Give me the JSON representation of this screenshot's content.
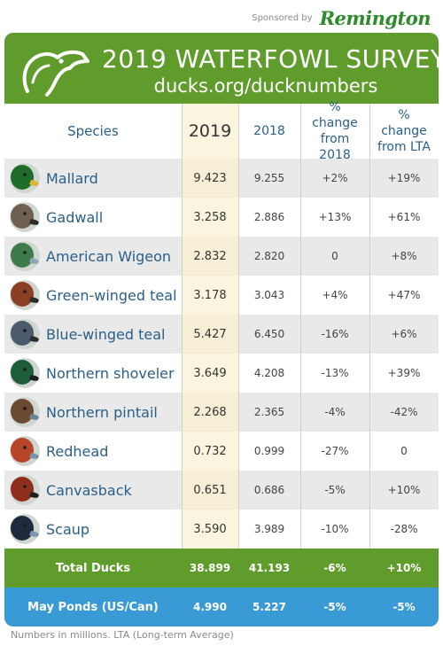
{
  "sponsor": {
    "label": "Sponsored by",
    "brand": "Remington"
  },
  "header": {
    "title": "2019 WATERFOWL SURVEY",
    "url": "ducks.org/ducknumbers"
  },
  "columns": {
    "species": "Species",
    "y2019": "2019",
    "y2018": "2018",
    "change2018": "% change from 2018",
    "changeLTA": "% change from LTA"
  },
  "rows": [
    {
      "species": "Mallard",
      "y2019": "9.423",
      "y2018": "9.255",
      "change2018": "+2%",
      "changeLTA": "+19%",
      "icon": "mallard-icon",
      "head": "#1f6b2a",
      "beak": "#d9b437"
    },
    {
      "species": "Gadwall",
      "y2019": "3.258",
      "y2018": "2.886",
      "change2018": "+13%",
      "changeLTA": "+61%",
      "icon": "gadwall-icon",
      "head": "#6f6152",
      "beak": "#2b2b2b"
    },
    {
      "species": "American Wigeon",
      "y2019": "2.832",
      "y2018": "2.820",
      "change2018": "0",
      "changeLTA": "+8%",
      "icon": "american-wigeon-icon",
      "head": "#3f7a4a",
      "beak": "#8fa5b8"
    },
    {
      "species": "Green-winged teal",
      "y2019": "3.178",
      "y2018": "3.043",
      "change2018": "+4%",
      "changeLTA": "+47%",
      "icon": "green-winged-teal-icon",
      "head": "#8a3f24",
      "beak": "#2b2b2b"
    },
    {
      "species": "Blue-winged teal",
      "y2019": "5.427",
      "y2018": "6.450",
      "change2018": "-16%",
      "changeLTA": "+6%",
      "icon": "blue-winged-teal-icon",
      "head": "#4d5a6b",
      "beak": "#2b2b2b"
    },
    {
      "species": "Northern shoveler",
      "y2019": "3.649",
      "y2018": "4.208",
      "change2018": "-13%",
      "changeLTA": "+39%",
      "icon": "northern-shoveler-icon",
      "head": "#1e5c3c",
      "beak": "#1f1f1f"
    },
    {
      "species": "Northern pintail",
      "y2019": "2.268",
      "y2018": "2.365",
      "change2018": "-4%",
      "changeLTA": "-42%",
      "icon": "northern-pintail-icon",
      "head": "#6b4a33",
      "beak": "#6d7f93"
    },
    {
      "species": "Redhead",
      "y2019": "0.732",
      "y2018": "0.999",
      "change2018": "-27%",
      "changeLTA": "0",
      "icon": "redhead-icon",
      "head": "#b6452a",
      "beak": "#7b8fa6"
    },
    {
      "species": "Canvasback",
      "y2019": "0.651",
      "y2018": "0.686",
      "change2018": "-5%",
      "changeLTA": "+10%",
      "icon": "canvasback-icon",
      "head": "#8e2e1c",
      "beak": "#1f1f1f"
    },
    {
      "species": "Scaup",
      "y2019": "3.590",
      "y2018": "3.989",
      "change2018": "-10%",
      "changeLTA": "-28%",
      "icon": "scaup-icon",
      "head": "#1f2a3d",
      "beak": "#7f95b0"
    }
  ],
  "total": {
    "label": "Total Ducks",
    "y2019": "38.899",
    "y2018": "41.193",
    "change2018": "-6%",
    "changeLTA": "+10%"
  },
  "ponds": {
    "label": "May Ponds (US/Can)",
    "y2019": "4.990",
    "y2018": "5.227",
    "change2018": "-5%",
    "changeLTA": "-5%"
  },
  "footnote": "Numbers in millions. LTA (Long-term Average)",
  "colors": {
    "green": "#5f9c2c",
    "blue": "#3a9ad6",
    "accent": "#2a5f87",
    "highlight": "#fbf4de"
  }
}
